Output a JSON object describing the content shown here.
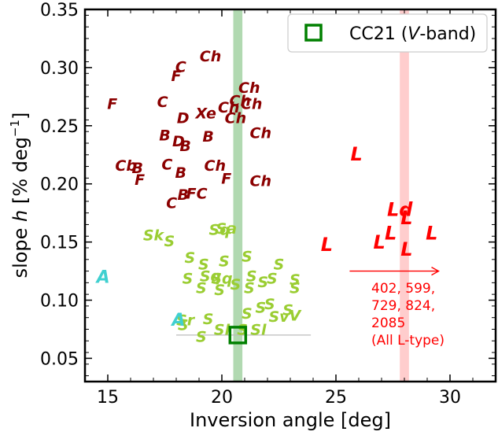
{
  "chart_data": {
    "type": "scatter",
    "xlabel": "Inversion angle [deg]",
    "ylabel_parts": {
      "pre": "slope ",
      "h": "h",
      "mid": " [% deg",
      "sup": "−1",
      "post": "]"
    },
    "xlim": [
      14,
      32
    ],
    "ylim": [
      0.03,
      0.35
    ],
    "xticks": [
      15,
      20,
      25,
      30
    ],
    "yticks": [
      0.05,
      0.1,
      0.15,
      0.2,
      0.25,
      0.3,
      0.35
    ],
    "xtick_labels": [
      "15",
      "20",
      "25",
      "30"
    ],
    "ytick_labels": [
      "0.05",
      "0.10",
      "0.15",
      "0.20",
      "0.25",
      "0.30",
      "0.35"
    ],
    "grid": false,
    "legend": {
      "position": "top-right",
      "label_pre": "CC21 (",
      "label_italic": "V",
      "label_post": "-band)"
    },
    "colors": {
      "C_complex": "#8b0000",
      "S_complex": "#9acd32",
      "A_type": "#40d0d0",
      "L_type": "#ff0000",
      "CC21": "#008000",
      "band_green": "#a8d5a8",
      "band_pink": "#ffc8c8"
    },
    "vertical_bands": [
      {
        "name": "green-band",
        "x_center": 20.7,
        "half_width": 0.2,
        "color": "#a8d5a8"
      },
      {
        "name": "pink-band",
        "x_center": 28.0,
        "half_width": 0.2,
        "color": "#ffc8c8"
      }
    ],
    "cc21_point": {
      "x": 20.7,
      "y": 0.07,
      "xerr_low": 18.0,
      "xerr_high": 23.9
    },
    "annotation": {
      "lines": [
        "402, 599,",
        "729, 824,",
        "2085",
        "(All L-type)"
      ],
      "arrow_from_x": 25.6,
      "arrow_to_x": 29.5,
      "arrow_y": 0.125,
      "color": "#ff0000"
    },
    "series": [
      {
        "name": "C-complex",
        "color": "#8b0000",
        "points": [
          {
            "label": "F",
            "x": 15.2,
            "y": 0.268
          },
          {
            "label": "C",
            "x": 18.2,
            "y": 0.3
          },
          {
            "label": "F",
            "x": 18.0,
            "y": 0.292
          },
          {
            "label": "Ch",
            "x": 19.5,
            "y": 0.309
          },
          {
            "label": "C",
            "x": 17.4,
            "y": 0.27
          },
          {
            "label": "D",
            "x": 18.3,
            "y": 0.256
          },
          {
            "label": "Xe",
            "x": 19.3,
            "y": 0.26
          },
          {
            "label": "Ch",
            "x": 20.3,
            "y": 0.265
          },
          {
            "label": "Ch",
            "x": 21.2,
            "y": 0.282
          },
          {
            "label": "Ch",
            "x": 20.8,
            "y": 0.271
          },
          {
            "label": "Ch",
            "x": 21.3,
            "y": 0.268
          },
          {
            "label": "Ch",
            "x": 20.6,
            "y": 0.256
          },
          {
            "label": "B",
            "x": 17.5,
            "y": 0.241
          },
          {
            "label": "D",
            "x": 18.1,
            "y": 0.236
          },
          {
            "label": "B",
            "x": 18.4,
            "y": 0.232
          },
          {
            "label": "B",
            "x": 19.4,
            "y": 0.24
          },
          {
            "label": "Ch",
            "x": 21.7,
            "y": 0.243
          },
          {
            "label": "Cb",
            "x": 15.8,
            "y": 0.215
          },
          {
            "label": "B",
            "x": 16.3,
            "y": 0.213
          },
          {
            "label": "F",
            "x": 16.4,
            "y": 0.203
          },
          {
            "label": "C",
            "x": 17.6,
            "y": 0.216
          },
          {
            "label": "B",
            "x": 18.2,
            "y": 0.209
          },
          {
            "label": "Ch",
            "x": 19.7,
            "y": 0.215
          },
          {
            "label": "F",
            "x": 20.2,
            "y": 0.204
          },
          {
            "label": "Ch",
            "x": 21.7,
            "y": 0.202
          },
          {
            "label": "B",
            "x": 18.3,
            "y": 0.19
          },
          {
            "label": "FC",
            "x": 18.9,
            "y": 0.191
          },
          {
            "label": "C",
            "x": 17.8,
            "y": 0.183
          }
        ]
      },
      {
        "name": "S-complex",
        "color": "#9acd32",
        "points": [
          {
            "label": "Sk",
            "x": 17.0,
            "y": 0.155
          },
          {
            "label": "S",
            "x": 17.7,
            "y": 0.15
          },
          {
            "label": "Sq",
            "x": 19.9,
            "y": 0.16
          },
          {
            "label": "Sa",
            "x": 20.2,
            "y": 0.161
          },
          {
            "label": "S",
            "x": 18.6,
            "y": 0.136
          },
          {
            "label": "S",
            "x": 19.2,
            "y": 0.13
          },
          {
            "label": "S",
            "x": 20.1,
            "y": 0.133
          },
          {
            "label": "S",
            "x": 21.1,
            "y": 0.137
          },
          {
            "label": "S",
            "x": 22.5,
            "y": 0.13
          },
          {
            "label": "S",
            "x": 18.5,
            "y": 0.118
          },
          {
            "label": "Sq",
            "x": 19.5,
            "y": 0.12
          },
          {
            "label": "Sq",
            "x": 20.0,
            "y": 0.118
          },
          {
            "label": "S",
            "x": 19.1,
            "y": 0.11
          },
          {
            "label": "S",
            "x": 19.9,
            "y": 0.108
          },
          {
            "label": "S",
            "x": 20.6,
            "y": 0.113
          },
          {
            "label": "S",
            "x": 21.3,
            "y": 0.12
          },
          {
            "label": "S",
            "x": 21.2,
            "y": 0.11
          },
          {
            "label": "S",
            "x": 21.8,
            "y": 0.115
          },
          {
            "label": "S",
            "x": 22.2,
            "y": 0.118
          },
          {
            "label": "S",
            "x": 23.2,
            "y": 0.117
          },
          {
            "label": "S",
            "x": 23.2,
            "y": 0.11
          },
          {
            "label": "S",
            "x": 21.7,
            "y": 0.093
          },
          {
            "label": "S",
            "x": 21.1,
            "y": 0.088
          },
          {
            "label": "S",
            "x": 22.1,
            "y": 0.096
          },
          {
            "label": "Sv",
            "x": 22.5,
            "y": 0.085
          },
          {
            "label": "V",
            "x": 23.2,
            "y": 0.086
          },
          {
            "label": "S",
            "x": 22.9,
            "y": 0.091
          },
          {
            "label": "Sr",
            "x": 18.4,
            "y": 0.082
          },
          {
            "label": "S",
            "x": 18.3,
            "y": 0.078
          },
          {
            "label": "S",
            "x": 19.4,
            "y": 0.083
          },
          {
            "label": "Sl",
            "x": 20.0,
            "y": 0.074
          },
          {
            "label": "S",
            "x": 20.9,
            "y": 0.074
          },
          {
            "label": "Sl",
            "x": 21.6,
            "y": 0.074
          },
          {
            "label": "S",
            "x": 19.1,
            "y": 0.068
          }
        ]
      },
      {
        "name": "A-type",
        "color": "#40d0d0",
        "points": [
          {
            "label": "A",
            "x": 14.8,
            "y": 0.119
          },
          {
            "label": "A",
            "x": 18.1,
            "y": 0.082
          }
        ]
      },
      {
        "name": "L-type",
        "color": "#ff0000",
        "points": [
          {
            "label": "L",
            "x": 25.9,
            "y": 0.225
          },
          {
            "label": "L",
            "x": 24.6,
            "y": 0.147
          },
          {
            "label": "Ld",
            "x": 27.8,
            "y": 0.177
          },
          {
            "label": "L",
            "x": 28.1,
            "y": 0.17
          },
          {
            "label": "L",
            "x": 27.4,
            "y": 0.157
          },
          {
            "label": "L",
            "x": 26.9,
            "y": 0.149
          },
          {
            "label": "L",
            "x": 28.1,
            "y": 0.143
          },
          {
            "label": "L",
            "x": 29.2,
            "y": 0.157
          }
        ]
      }
    ]
  }
}
